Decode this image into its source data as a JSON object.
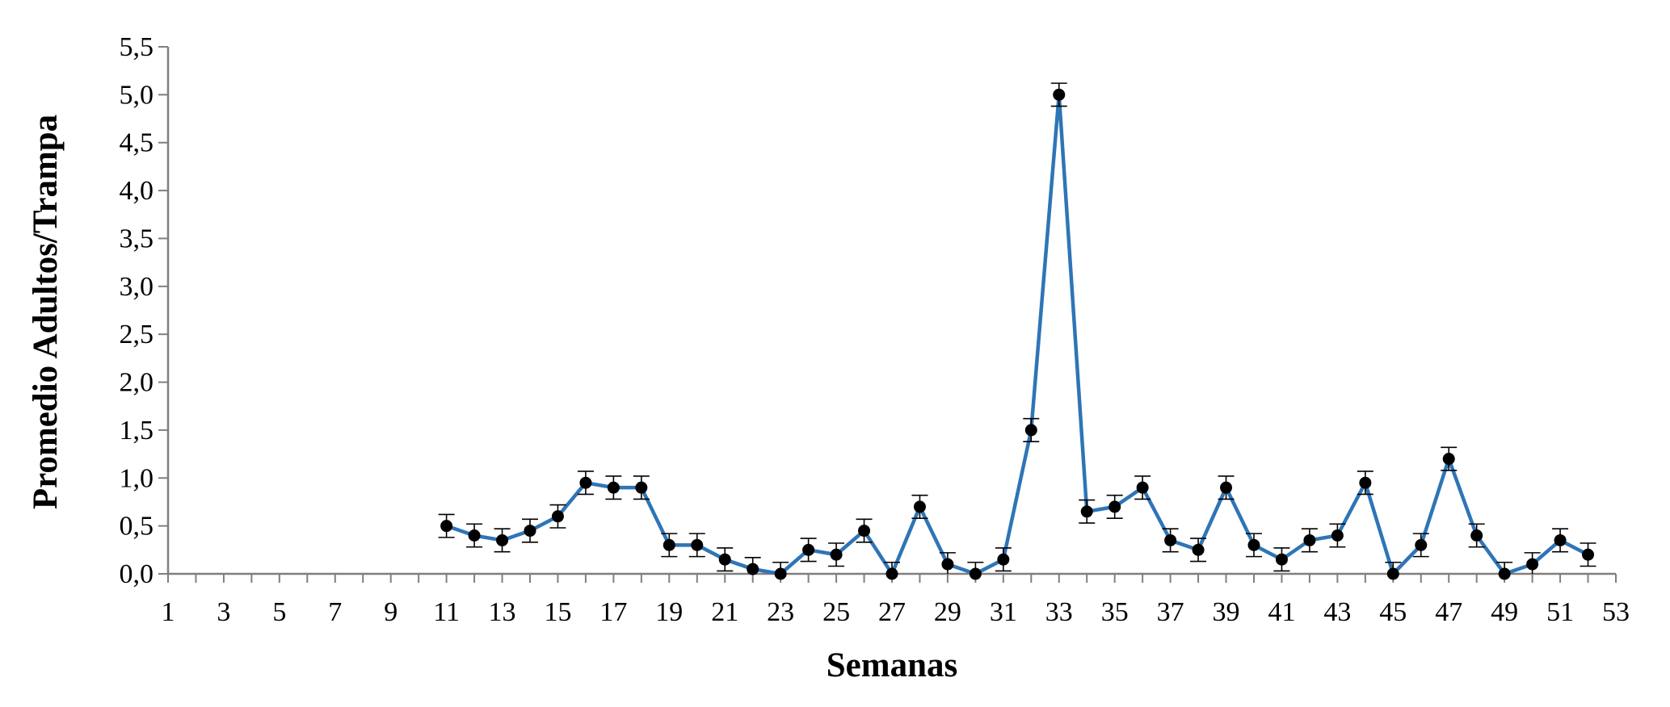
{
  "chart_data": {
    "type": "line",
    "title": "",
    "xlabel": "Semanas",
    "ylabel": "Promedio Adultos/Trampa",
    "xlim": [
      1,
      53
    ],
    "ylim": [
      0,
      5.5
    ],
    "x_tick_labels": [
      "1",
      "3",
      "5",
      "7",
      "9",
      "11",
      "13",
      "15",
      "17",
      "19",
      "21",
      "23",
      "25",
      "27",
      "29",
      "31",
      "33",
      "35",
      "37",
      "39",
      "41",
      "43",
      "45",
      "47",
      "49",
      "51",
      "53"
    ],
    "y_tick_labels": [
      "0,0",
      "0,5",
      "1,0",
      "1,5",
      "2,0",
      "2,5",
      "3,0",
      "3,5",
      "4,0",
      "4,5",
      "5,0",
      "5,5"
    ],
    "grid": false,
    "legend": "none",
    "series_color": "#2e75b6",
    "marker_color": "#000000",
    "series": [
      {
        "x": [
          11,
          12,
          13,
          14,
          15,
          16,
          17,
          18,
          19,
          20,
          21,
          22,
          23,
          24,
          25,
          26,
          27,
          28,
          29,
          30,
          31,
          32,
          33,
          34,
          35,
          36,
          37,
          38,
          39,
          40,
          41,
          42,
          43,
          44,
          45,
          46,
          47,
          48,
          49,
          50,
          51,
          52
        ],
        "values": [
          0.5,
          0.4,
          0.35,
          0.45,
          0.6,
          0.95,
          0.9,
          0.9,
          0.3,
          0.3,
          0.15,
          0.05,
          0.0,
          0.25,
          0.2,
          0.45,
          0.0,
          0.7,
          0.1,
          0.0,
          0.15,
          1.5,
          5.0,
          0.65,
          0.7,
          0.9,
          0.35,
          0.25,
          0.9,
          0.3,
          0.15,
          0.35,
          0.4,
          0.95,
          0.0,
          0.3,
          1.2,
          0.4,
          0.0,
          0.1,
          0.35,
          0.2
        ],
        "error": [
          0.12,
          0.12,
          0.12,
          0.12,
          0.12,
          0.12,
          0.12,
          0.12,
          0.12,
          0.12,
          0.12,
          0.12,
          0.12,
          0.12,
          0.12,
          0.12,
          0.12,
          0.12,
          0.12,
          0.12,
          0.12,
          0.12,
          0.12,
          0.12,
          0.12,
          0.12,
          0.12,
          0.12,
          0.12,
          0.12,
          0.12,
          0.12,
          0.12,
          0.12,
          0.12,
          0.12,
          0.12,
          0.12,
          0.12,
          0.12,
          0.12,
          0.12
        ]
      }
    ]
  }
}
